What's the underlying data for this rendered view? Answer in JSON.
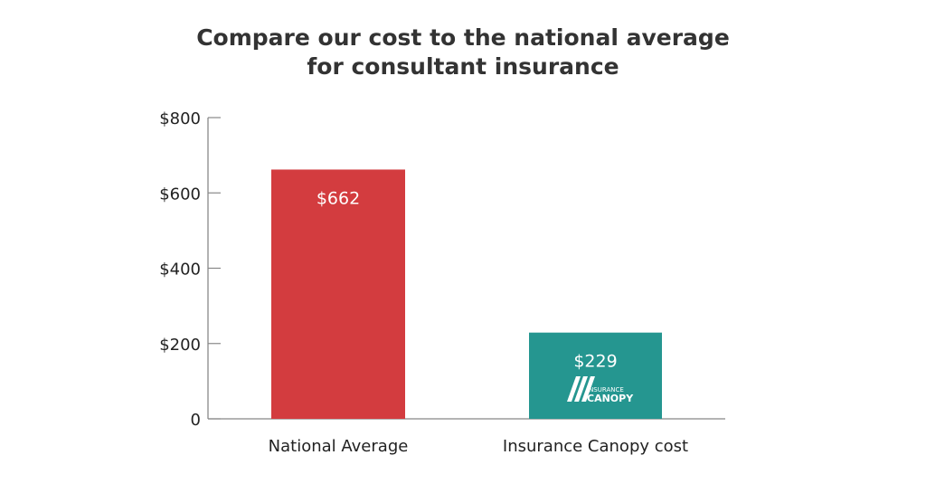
{
  "chart_data": {
    "type": "bar",
    "title_line1": "Compare our cost to the national average",
    "title_line2": "for consultant insurance",
    "categories": [
      "National Average",
      "Insurance Canopy cost"
    ],
    "values": [
      662,
      229
    ],
    "data_labels": [
      "$662",
      "$229"
    ],
    "colors": [
      "#d33c3f",
      "#259690"
    ],
    "ylim": [
      0,
      800
    ],
    "yticks": [
      0,
      200,
      400,
      600,
      800
    ],
    "ytick_labels": [
      "0",
      "$200",
      "$400",
      "$600",
      "$800"
    ],
    "grid": false,
    "logo_text": [
      "INSURANCE",
      "CANOPY"
    ]
  }
}
